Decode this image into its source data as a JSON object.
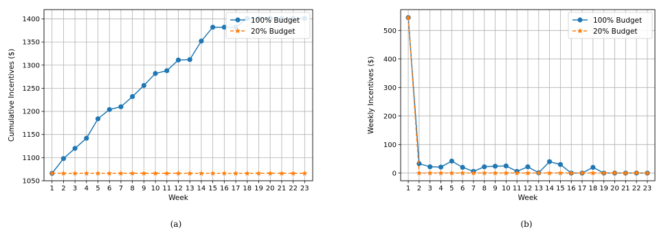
{
  "colors": {
    "series1": "#1f77b4",
    "series2": "#ff7f0e",
    "grid": "#b0b0b0",
    "axis": "#000000"
  },
  "chart_data": [
    {
      "type": "line",
      "caption": "(a)",
      "xlabel": "Week",
      "ylabel": "Cumulative Incentives ($)",
      "x": [
        1,
        2,
        3,
        4,
        5,
        6,
        7,
        8,
        9,
        10,
        11,
        12,
        13,
        14,
        15,
        16,
        17,
        18,
        19,
        20,
        21,
        22,
        23
      ],
      "xlim": [
        0.3,
        23.7
      ],
      "ylim": [
        1050,
        1420
      ],
      "yticks": [
        1050,
        1100,
        1150,
        1200,
        1250,
        1300,
        1350,
        1400
      ],
      "grid": true,
      "legend_loc": "top-right",
      "series": [
        {
          "name": "100% Budget",
          "marker": "circle",
          "linestyle": "solid",
          "values": [
            1066,
            1098,
            1120,
            1142,
            1184,
            1204,
            1210,
            1232,
            1256,
            1282,
            1288,
            1311,
            1312,
            1352,
            1382,
            1382,
            1382,
            1401,
            1401,
            1401,
            1401,
            1401,
            1401
          ]
        },
        {
          "name": "20% Budget",
          "marker": "star",
          "linestyle": "dashed",
          "values": [
            1066,
            1066,
            1066,
            1066,
            1066,
            1066,
            1066,
            1066,
            1066,
            1066,
            1066,
            1066,
            1066,
            1066,
            1066,
            1066,
            1066,
            1066,
            1066,
            1066,
            1066,
            1066,
            1066
          ]
        }
      ]
    },
    {
      "type": "line",
      "caption": "(b)",
      "xlabel": "Week",
      "ylabel": "Weekly Incentives ($)",
      "x": [
        1,
        2,
        3,
        4,
        5,
        6,
        7,
        8,
        9,
        10,
        11,
        12,
        13,
        14,
        15,
        16,
        17,
        18,
        19,
        20,
        21,
        22,
        23
      ],
      "xlim": [
        0.3,
        23.7
      ],
      "ylim": [
        -27,
        573
      ],
      "yticks": [
        0,
        100,
        200,
        300,
        400,
        500
      ],
      "grid": true,
      "legend_loc": "top-right",
      "series": [
        {
          "name": "100% Budget",
          "marker": "circle",
          "linestyle": "solid",
          "values": [
            545,
            33,
            22,
            21,
            42,
            20,
            6,
            22,
            24,
            25,
            6,
            22,
            1,
            40,
            30,
            0,
            0,
            20,
            0,
            0,
            0,
            0,
            0
          ]
        },
        {
          "name": "20% Budget",
          "marker": "star",
          "linestyle": "dashed",
          "values": [
            545,
            0,
            0,
            0,
            0,
            0,
            0,
            0,
            0,
            0,
            0,
            0,
            0,
            0,
            0,
            0,
            0,
            0,
            0,
            0,
            0,
            0,
            0
          ]
        }
      ]
    }
  ]
}
